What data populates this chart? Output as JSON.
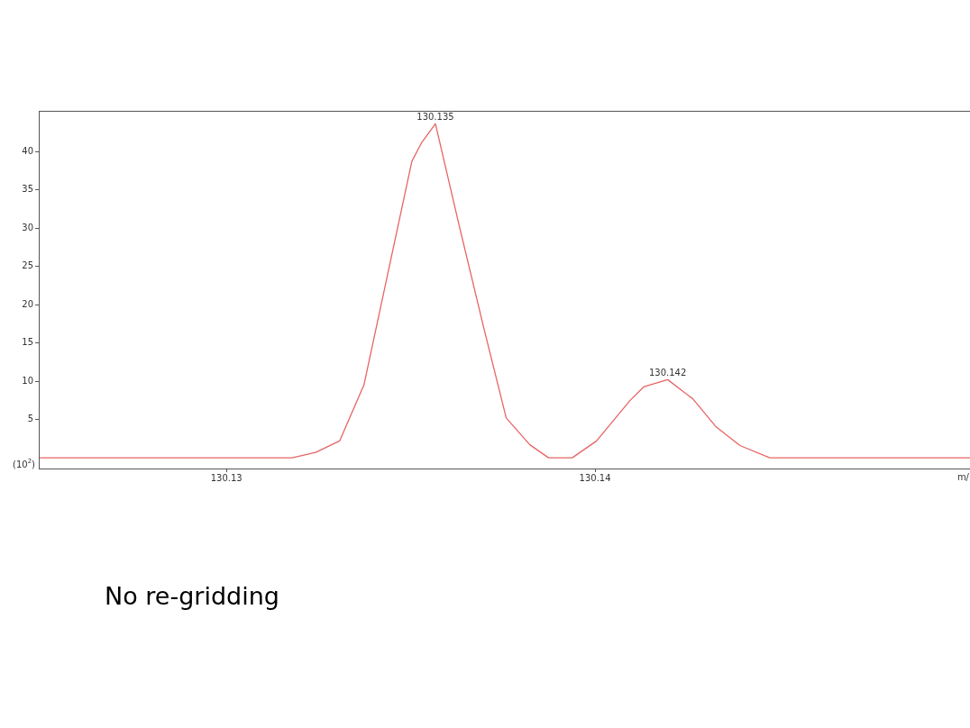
{
  "chart_data": {
    "type": "line",
    "xlabel": "m/",
    "ylabel": "(10$^{2}$)",
    "x": [
      130.12491,
      130.13178,
      130.13242,
      130.13307,
      130.13373,
      130.13503,
      130.13529,
      130.13567,
      130.13633,
      130.13699,
      130.13759,
      130.13823,
      130.13874,
      130.13938,
      130.14004,
      130.14095,
      130.14133,
      130.14197,
      130.14265,
      130.14329,
      130.14393,
      130.14474,
      130.15017
    ],
    "series": [
      {
        "color": "#e86464",
        "values": [
          0,
          0,
          0.7,
          2.2,
          9.5,
          38.7,
          41.1,
          43.6,
          30,
          16.8,
          5.2,
          1.7,
          0,
          0,
          2.2,
          7.5,
          9.3,
          10.2,
          7.7,
          4.0,
          1.6,
          0,
          0
        ]
      }
    ],
    "xlim": [
      130.12491,
      130.15017
    ],
    "xticks": [
      130.13,
      130.14
    ],
    "ylim": [
      -1.4,
      45.3
    ],
    "yticks": [
      5,
      10,
      15,
      20,
      25,
      30,
      35,
      40
    ],
    "grid": false,
    "legend": false,
    "marker": "none",
    "line_style": "solid",
    "annotations": [
      {
        "text": "130.135",
        "x": 130.13567,
        "y": 43.6
      },
      {
        "text": "130.142",
        "x": 130.14197,
        "y": 10.2
      },
      "No re-gridding"
    ]
  }
}
